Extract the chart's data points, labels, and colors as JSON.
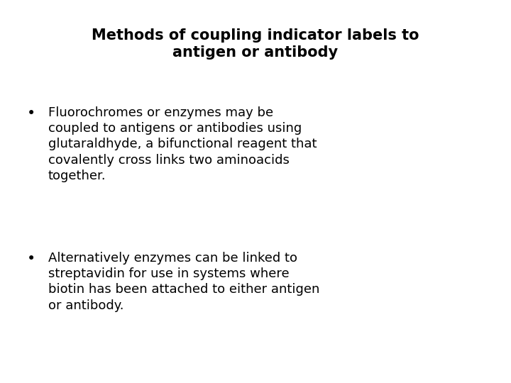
{
  "title_line1": "Methods of coupling indicator labels to",
  "title_line2": "antigen or antibody",
  "background_color": "#ffffff",
  "text_color": "#000000",
  "title_fontsize": 15,
  "body_fontsize": 13,
  "bullet_fontsize": 15,
  "bullet1_lines": [
    "Fluorochromes or enzymes may be",
    "coupled to antigens or antibodies using",
    "glutaraldhyde, a bifunctional reagent that",
    "covalently cross links two aminoacids",
    "together."
  ],
  "bullet2_lines": [
    "Alternatively enzymes can be linked to",
    "streptavidin for use in systems where",
    "biotin has been attached to either antigen",
    "or antibody."
  ]
}
